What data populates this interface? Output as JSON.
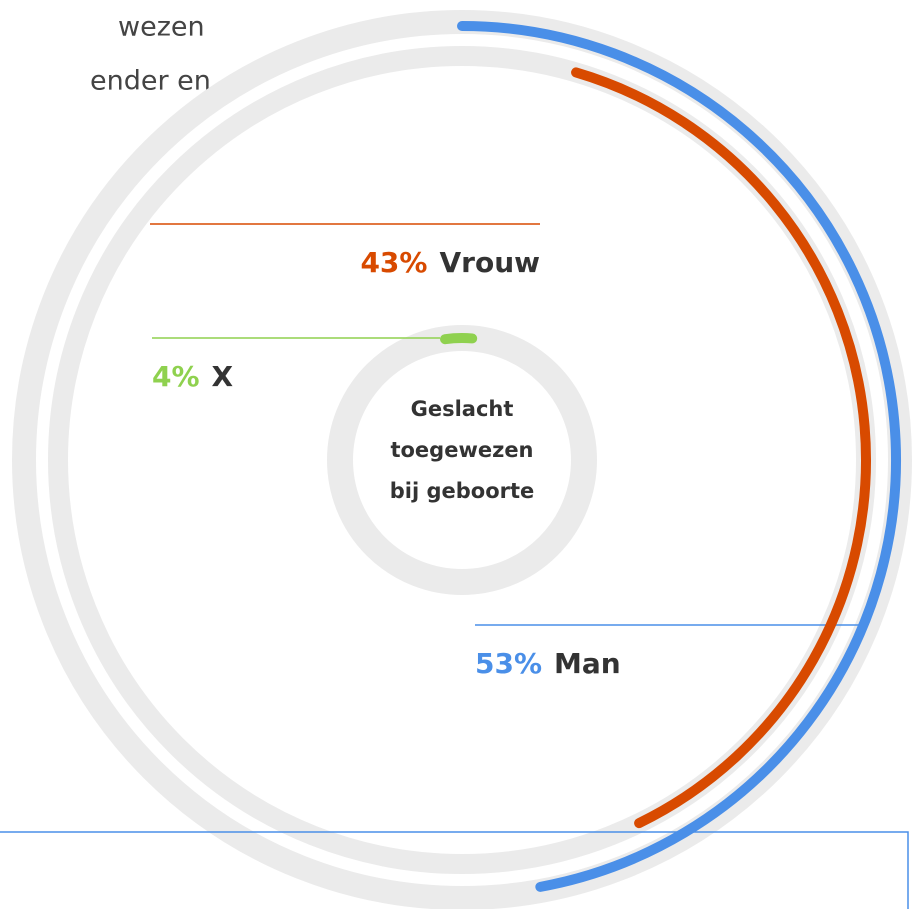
{
  "text_fragments": [
    "wezen",
    "ender en"
  ],
  "chart_data": {
    "type": "radial-bar",
    "center_label": [
      "Geslacht",
      "toegewezen",
      "bij geboorte"
    ],
    "categories": [
      "Man",
      "Vrouw",
      "X"
    ],
    "values": [
      53,
      43,
      4
    ],
    "value_labels": [
      "53%",
      "43%",
      "4%"
    ],
    "colors": [
      "#4a8fe8",
      "#d84a00",
      "#8fd14f"
    ]
  }
}
